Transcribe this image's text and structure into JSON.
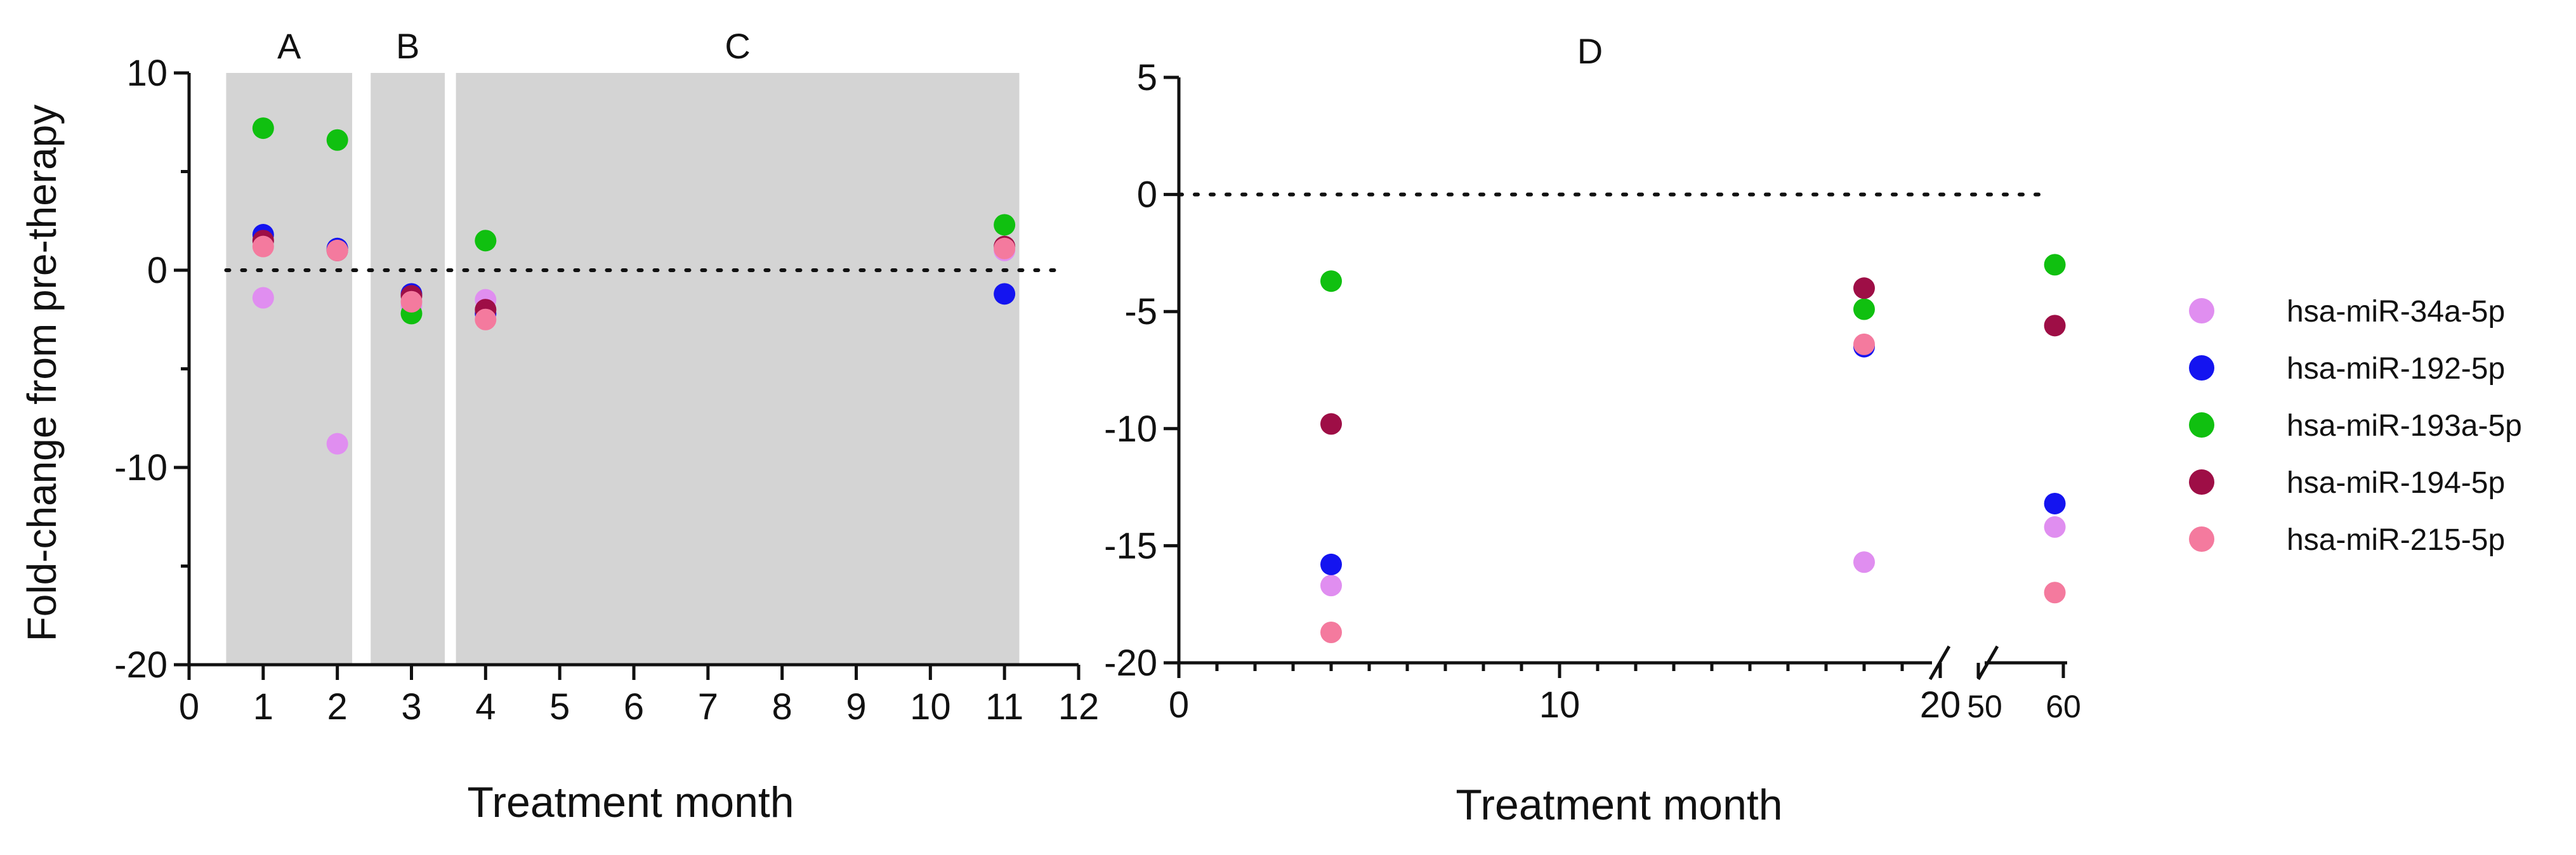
{
  "legend": [
    {
      "name": "hsa-miR-34a-5p",
      "color": "#e08ef0"
    },
    {
      "name": "hsa-miR-192-5p",
      "color": "#1414f0"
    },
    {
      "name": "hsa-miR-193a-5p",
      "color": "#10c010"
    },
    {
      "name": "hsa-miR-194-5p",
      "color": "#9e0e46"
    },
    {
      "name": "hsa-miR-215-5p",
      "color": "#f47a9e"
    }
  ],
  "chart_data": [
    {
      "type": "scatter",
      "panel": "left",
      "ylabel": "Fold-change from pre-therapy",
      "xlabel": "Treatment month",
      "xlim": [
        0,
        12
      ],
      "ylim": [
        -20,
        10
      ],
      "xticks": [
        "0",
        "1",
        "2",
        "3",
        "4",
        "5",
        "6",
        "7",
        "8",
        "9",
        "10",
        "11",
        "12"
      ],
      "yticks": [
        "10",
        "0",
        "-10",
        "-20"
      ],
      "reference_line": 0,
      "shaded_regions": [
        {
          "label": "A",
          "start": 0.5,
          "end": 2.2
        },
        {
          "label": "B",
          "start": 2.45,
          "end": 3.45
        },
        {
          "label": "C",
          "start": 3.6,
          "end": 11.2
        }
      ],
      "series": [
        {
          "name": "hsa-miR-34a-5p",
          "points": [
            [
              1,
              -1.4
            ],
            [
              2,
              -8.8
            ],
            [
              3,
              -1.8
            ],
            [
              4,
              -1.5
            ],
            [
              11,
              1.0
            ]
          ]
        },
        {
          "name": "hsa-miR-192-5p",
          "points": [
            [
              1,
              1.8
            ],
            [
              2,
              1.1
            ],
            [
              3,
              -1.2
            ],
            [
              4,
              -2.2
            ],
            [
              11,
              -1.2
            ]
          ]
        },
        {
          "name": "hsa-miR-193a-5p",
          "points": [
            [
              1,
              7.2
            ],
            [
              2,
              6.6
            ],
            [
              3,
              -2.2
            ],
            [
              4,
              1.5
            ],
            [
              11,
              2.3
            ]
          ]
        },
        {
          "name": "hsa-miR-194-5p",
          "points": [
            [
              1,
              1.5
            ],
            [
              2,
              1.0
            ],
            [
              3,
              -1.3
            ],
            [
              4,
              -2.0
            ],
            [
              11,
              1.2
            ]
          ]
        },
        {
          "name": "hsa-miR-215-5p",
          "points": [
            [
              1,
              1.2
            ],
            [
              2,
              1.0
            ],
            [
              3,
              -1.6
            ],
            [
              4,
              -2.5
            ],
            [
              11,
              1.1
            ]
          ]
        }
      ]
    },
    {
      "type": "scatter",
      "panel": "right",
      "title": "D",
      "xlabel": "Treatment month",
      "x_segments": [
        {
          "range": [
            0,
            20
          ],
          "ticks": [
            "0",
            "10",
            "20"
          ]
        },
        {
          "range": [
            50,
            60
          ],
          "ticks": [
            "50",
            "60"
          ]
        }
      ],
      "ylim": [
        -20,
        5
      ],
      "yticks": [
        "5",
        "0",
        "-5",
        "-10",
        "-15",
        "-20"
      ],
      "reference_line": 0,
      "series": [
        {
          "name": "hsa-miR-34a-5p",
          "points": [
            [
              4,
              -16.7
            ],
            [
              18,
              -15.7
            ],
            [
              59,
              -14.2
            ]
          ]
        },
        {
          "name": "hsa-miR-192-5p",
          "points": [
            [
              4,
              -15.8
            ],
            [
              18,
              -6.5
            ],
            [
              59,
              -13.2
            ]
          ]
        },
        {
          "name": "hsa-miR-193a-5p",
          "points": [
            [
              4,
              -3.7
            ],
            [
              18,
              -4.9
            ],
            [
              59,
              -3.0
            ]
          ]
        },
        {
          "name": "hsa-miR-194-5p",
          "points": [
            [
              4,
              -9.8
            ],
            [
              18,
              -4.0
            ],
            [
              59,
              -5.6
            ]
          ]
        },
        {
          "name": "hsa-miR-215-5p",
          "points": [
            [
              4,
              -18.7
            ],
            [
              18,
              -6.4
            ],
            [
              59,
              -17.0
            ]
          ]
        }
      ]
    }
  ]
}
